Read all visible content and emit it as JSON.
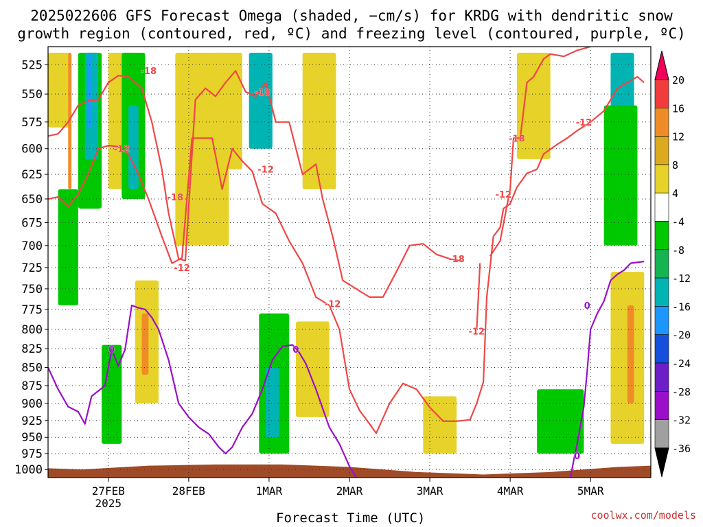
{
  "title": {
    "line1": "2025022606 GFS Forecast Omega (shaded, −cm/s) for KRDG with dendritic snow",
    "line2": "growth region (contoured, red, ºC) and freezing level (contoured, purple, ºC)"
  },
  "credit": "coolwx.com/models",
  "chart_data": {
    "type": "heatmap",
    "xlabel": "Forecast Time (UTC)",
    "ylabel": "",
    "x_unit": "hours since 2025-02-26 06Z",
    "x_ticks": [
      {
        "label": "27FEB",
        "sublabel": "2025",
        "value": 18
      },
      {
        "label": "28FEB",
        "sublabel": "",
        "value": 42
      },
      {
        "label": "1MAR",
        "sublabel": "",
        "value": 66
      },
      {
        "label": "2MAR",
        "sublabel": "",
        "value": 90
      },
      {
        "label": "3MAR",
        "sublabel": "",
        "value": 114
      },
      {
        "label": "4MAR",
        "sublabel": "",
        "value": 138
      },
      {
        "label": "5MAR",
        "sublabel": "",
        "value": 162
      }
    ],
    "xlim": [
      0,
      180
    ],
    "y_ticks": [
      525,
      550,
      575,
      600,
      625,
      650,
      675,
      700,
      725,
      750,
      775,
      800,
      825,
      850,
      875,
      900,
      925,
      950,
      975,
      1000
    ],
    "ylim": [
      1013,
      510
    ],
    "y_scale": "log-pressure",
    "grid": true,
    "colorbar": {
      "ticks": [
        20,
        16,
        12,
        8,
        4,
        -4,
        -8,
        -12,
        -16,
        -20,
        -24,
        -28,
        -32,
        -36
      ],
      "colors": [
        "#f0005a",
        "#f03c3c",
        "#f08c28",
        "#dcaa1e",
        "#e6d228",
        "#ffffff",
        "#00c800",
        "#14b450",
        "#00b4b4",
        "#1e96ff",
        "#1450dc",
        "#6e1ec8",
        "#9b0fc8",
        "#a0a0a0",
        "#000000"
      ]
    },
    "omega_regions": [
      {
        "name": "upper-left yellow",
        "level": 4,
        "x": [
          0,
          7
        ],
        "p": [
          515,
          580
        ]
      },
      {
        "name": "left green column",
        "level": -6,
        "x": [
          3,
          9
        ],
        "p": [
          640,
          770
        ]
      },
      {
        "name": "27feb green",
        "level": -6,
        "x": [
          9,
          16
        ],
        "p": [
          515,
          660
        ]
      },
      {
        "name": "27feb cyan",
        "level": -12,
        "x": [
          11,
          15
        ],
        "p": [
          515,
          610
        ]
      },
      {
        "name": "27feb blue",
        "level": -18,
        "x": [
          12,
          13
        ],
        "p": [
          515,
          580
        ]
      },
      {
        "name": "27feb orange streak",
        "level": 12,
        "x": [
          6,
          7
        ],
        "p": [
          515,
          640
        ]
      },
      {
        "name": "27feb green low",
        "level": -6,
        "x": [
          16,
          22
        ],
        "p": [
          820,
          960
        ]
      },
      {
        "name": "28feb yellow",
        "level": 4,
        "x": [
          18,
          26
        ],
        "p": [
          515,
          640
        ]
      },
      {
        "name": "28feb green",
        "level": -6,
        "x": [
          22,
          29
        ],
        "p": [
          515,
          650
        ]
      },
      {
        "name": "28feb cyan",
        "level": -12,
        "x": [
          24,
          27
        ],
        "p": [
          560,
          640
        ]
      },
      {
        "name": "28feb yellow low",
        "level": 4,
        "x": [
          26,
          33
        ],
        "p": [
          740,
          900
        ]
      },
      {
        "name": "28feb orange low",
        "level": 12,
        "x": [
          28,
          30
        ],
        "p": [
          780,
          860
        ]
      },
      {
        "name": "28feb-1mar yellow",
        "level": 4,
        "x": [
          38,
          54
        ],
        "p": [
          515,
          700
        ]
      },
      {
        "name": "1mar yellow top",
        "level": 4,
        "x": [
          50,
          58
        ],
        "p": [
          515,
          620
        ]
      },
      {
        "name": "1mar cyan top",
        "level": -12,
        "x": [
          60,
          67
        ],
        "p": [
          515,
          600
        ]
      },
      {
        "name": "1mar green low",
        "level": -6,
        "x": [
          63,
          72
        ],
        "p": [
          780,
          975
        ]
      },
      {
        "name": "1mar cyan low",
        "level": -12,
        "x": [
          65,
          69
        ],
        "p": [
          850,
          950
        ]
      },
      {
        "name": "1mar-2mar yellow",
        "level": 4,
        "x": [
          76,
          86
        ],
        "p": [
          515,
          640
        ]
      },
      {
        "name": "1mar yellow low",
        "level": 4,
        "x": [
          74,
          84
        ],
        "p": [
          790,
          920
        ]
      },
      {
        "name": "3mar yellow low",
        "level": 4,
        "x": [
          112,
          122
        ],
        "p": [
          890,
          975
        ]
      },
      {
        "name": "4mar yellow top",
        "level": 4,
        "x": [
          140,
          150
        ],
        "p": [
          515,
          610
        ]
      },
      {
        "name": "4mar-5mar green low",
        "level": -6,
        "x": [
          146,
          160
        ],
        "p": [
          880,
          975
        ]
      },
      {
        "name": "5mar cyan top",
        "level": -12,
        "x": [
          168,
          175
        ],
        "p": [
          515,
          630
        ]
      },
      {
        "name": "5mar green",
        "level": -6,
        "x": [
          166,
          176
        ],
        "p": [
          560,
          700
        ]
      },
      {
        "name": "5mar yellow low",
        "level": 4,
        "x": [
          168,
          178
        ],
        "p": [
          730,
          960
        ]
      },
      {
        "name": "5mar orange low",
        "level": 12,
        "x": [
          173,
          175
        ],
        "p": [
          770,
          900
        ]
      }
    ],
    "series": [
      {
        "name": "-18",
        "kind": "dgz",
        "color": "#f04646",
        "points": [
          [
            0,
            588
          ],
          [
            3,
            586
          ],
          [
            6,
            575
          ],
          [
            9,
            560
          ],
          [
            12,
            556
          ],
          [
            15,
            555
          ],
          [
            18,
            540
          ],
          [
            21,
            534
          ],
          [
            24,
            535
          ],
          [
            28,
            545
          ],
          [
            31,
            575
          ],
          [
            34,
            620
          ],
          [
            36,
            665
          ],
          [
            39,
            715
          ],
          [
            41,
            717
          ],
          [
            44,
            555
          ],
          [
            47,
            545
          ],
          [
            50,
            552
          ],
          [
            53,
            540
          ],
          [
            56,
            530
          ],
          [
            59,
            548
          ],
          [
            62,
            552
          ],
          [
            65,
            540
          ],
          [
            68,
            575
          ],
          [
            72,
            575
          ],
          [
            76,
            625
          ],
          [
            80,
            615
          ],
          [
            82,
            650
          ],
          [
            85,
            690
          ],
          [
            88,
            740
          ],
          [
            92,
            750
          ],
          [
            96,
            760
          ],
          [
            100,
            760
          ],
          [
            104,
            730
          ],
          [
            108,
            700
          ],
          [
            112,
            698
          ],
          [
            116,
            710
          ],
          [
            120,
            715
          ],
          [
            124,
            718
          ]
        ]
      },
      {
        "name": "-18 (upper)",
        "kind": "dgz",
        "color": "#f04646",
        "points": [
          [
            132,
            712
          ],
          [
            135,
            695
          ],
          [
            138,
            640
          ],
          [
            139,
            590
          ],
          [
            141,
            590
          ],
          [
            143,
            540
          ],
          [
            145,
            535
          ],
          [
            148,
            520
          ],
          [
            150,
            516
          ],
          [
            154,
            518
          ],
          [
            158,
            513
          ],
          [
            162,
            510
          ]
        ]
      },
      {
        "name": "-12",
        "kind": "dgz",
        "color": "#f04646",
        "points": [
          [
            0,
            650
          ],
          [
            3,
            648
          ],
          [
            6,
            658
          ],
          [
            9,
            645
          ],
          [
            12,
            625
          ],
          [
            15,
            600
          ],
          [
            18,
            597
          ],
          [
            21,
            598
          ],
          [
            24,
            605
          ],
          [
            27,
            625
          ],
          [
            30,
            650
          ],
          [
            34,
            690
          ],
          [
            37,
            720
          ],
          [
            40,
            714
          ],
          [
            43,
            590
          ],
          [
            46,
            590
          ],
          [
            49,
            590
          ],
          [
            52,
            640
          ],
          [
            55,
            600
          ],
          [
            58,
            612
          ],
          [
            61,
            622
          ],
          [
            64,
            655
          ],
          [
            68,
            665
          ],
          [
            72,
            695
          ],
          [
            76,
            720
          ],
          [
            80,
            760
          ],
          [
            84,
            770
          ],
          [
            87,
            800
          ],
          [
            90,
            880
          ],
          [
            93,
            910
          ],
          [
            96,
            930
          ],
          [
            98,
            944
          ],
          [
            102,
            900
          ],
          [
            106,
            872
          ],
          [
            110,
            880
          ],
          [
            114,
            906
          ],
          [
            118,
            926
          ],
          [
            122,
            926
          ],
          [
            126,
            924
          ],
          [
            128,
            900
          ],
          [
            130,
            870
          ],
          [
            131,
            760
          ],
          [
            133,
            690
          ],
          [
            135,
            680
          ],
          [
            136,
            660
          ],
          [
            138,
            655
          ],
          [
            140,
            638
          ],
          [
            143,
            624
          ],
          [
            146,
            620
          ],
          [
            148,
            605
          ],
          [
            152,
            596
          ],
          [
            155,
            590
          ],
          [
            158,
            583
          ],
          [
            162,
            575
          ],
          [
            166,
            565
          ],
          [
            170,
            545
          ],
          [
            173,
            540
          ],
          [
            176,
            535
          ],
          [
            178,
            540
          ]
        ]
      },
      {
        "name": "-12 (low)",
        "kind": "dgz",
        "color": "#f04646",
        "points": [
          [
            128,
            800
          ],
          [
            129,
            720
          ]
        ]
      },
      {
        "name": "0",
        "kind": "freezing",
        "color": "#9b0fc8",
        "points": [
          [
            0,
            850
          ],
          [
            3,
            880
          ],
          [
            6,
            905
          ],
          [
            9,
            912
          ],
          [
            11,
            930
          ],
          [
            13,
            890
          ],
          [
            17,
            875
          ],
          [
            19,
            826
          ],
          [
            21,
            848
          ],
          [
            23,
            826
          ],
          [
            25,
            770
          ],
          [
            27,
            773
          ],
          [
            29,
            775
          ],
          [
            31,
            785
          ],
          [
            33,
            800
          ],
          [
            36,
            840
          ],
          [
            39,
            900
          ],
          [
            42,
            920
          ],
          [
            45,
            935
          ],
          [
            48,
            945
          ],
          [
            51,
            965
          ],
          [
            53,
            975
          ],
          [
            55,
            965
          ],
          [
            58,
            935
          ],
          [
            61,
            915
          ],
          [
            64,
            880
          ],
          [
            67,
            840
          ],
          [
            70,
            822
          ],
          [
            73,
            820
          ],
          [
            75,
            830
          ],
          [
            77,
            845
          ],
          [
            80,
            880
          ],
          [
            84,
            935
          ],
          [
            87,
            960
          ],
          [
            90,
            995
          ],
          [
            92,
            1013
          ]
        ]
      },
      {
        "name": "0 (late)",
        "kind": "freezing",
        "color": "#9b0fc8",
        "points": [
          [
            156,
            1013
          ],
          [
            157,
            985
          ],
          [
            158,
            960
          ],
          [
            160,
            905
          ],
          [
            161,
            855
          ],
          [
            162,
            800
          ],
          [
            164,
            780
          ],
          [
            166,
            765
          ],
          [
            168,
            740
          ],
          [
            170,
            733
          ],
          [
            172,
            728
          ],
          [
            174,
            720
          ],
          [
            178,
            718
          ]
        ]
      }
    ],
    "contour_labels": [
      {
        "text": "-18",
        "x": 30,
        "p": 530,
        "color": "#f04646"
      },
      {
        "text": "-18",
        "x": 64,
        "p": 548,
        "color": "#f04646"
      },
      {
        "text": "-18",
        "x": 38,
        "p": 648,
        "color": "#f04646"
      },
      {
        "text": "-18",
        "x": 122,
        "p": 715,
        "color": "#f04646"
      },
      {
        "text": "-18",
        "x": 140,
        "p": 590,
        "color": "#f04646"
      },
      {
        "text": "-12",
        "x": 22,
        "p": 600,
        "color": "#f04646"
      },
      {
        "text": "-12",
        "x": 65,
        "p": 620,
        "color": "#f04646"
      },
      {
        "text": "-12",
        "x": 40,
        "p": 725,
        "color": "#f04646"
      },
      {
        "text": "-12",
        "x": 85,
        "p": 768,
        "color": "#f04646"
      },
      {
        "text": "-12",
        "x": 136,
        "p": 645,
        "color": "#f04646"
      },
      {
        "text": "-12",
        "x": 128,
        "p": 802,
        "color": "#f04646"
      },
      {
        "text": "-12",
        "x": 160,
        "p": 575,
        "color": "#f04646"
      },
      {
        "text": "0",
        "x": 19,
        "p": 826,
        "color": "#9b0fc8"
      },
      {
        "text": "0",
        "x": 74,
        "p": 826,
        "color": "#9b0fc8"
      },
      {
        "text": "0",
        "x": 158,
        "p": 978,
        "color": "#9b0fc8"
      },
      {
        "text": "0",
        "x": 161,
        "p": 770,
        "color": "#9b0fc8"
      }
    ],
    "terrain": {
      "color": "#a04b28",
      "points": [
        [
          0,
          998
        ],
        [
          10,
          1000
        ],
        [
          20,
          997
        ],
        [
          30,
          994
        ],
        [
          40,
          993
        ],
        [
          50,
          992
        ],
        [
          60,
          992
        ],
        [
          70,
          992
        ],
        [
          80,
          994
        ],
        [
          90,
          996
        ],
        [
          100,
          1000
        ],
        [
          110,
          1004
        ],
        [
          120,
          1006
        ],
        [
          130,
          1008
        ],
        [
          140,
          1006
        ],
        [
          150,
          1004
        ],
        [
          160,
          1000
        ],
        [
          170,
          996
        ],
        [
          180,
          994
        ]
      ]
    }
  }
}
